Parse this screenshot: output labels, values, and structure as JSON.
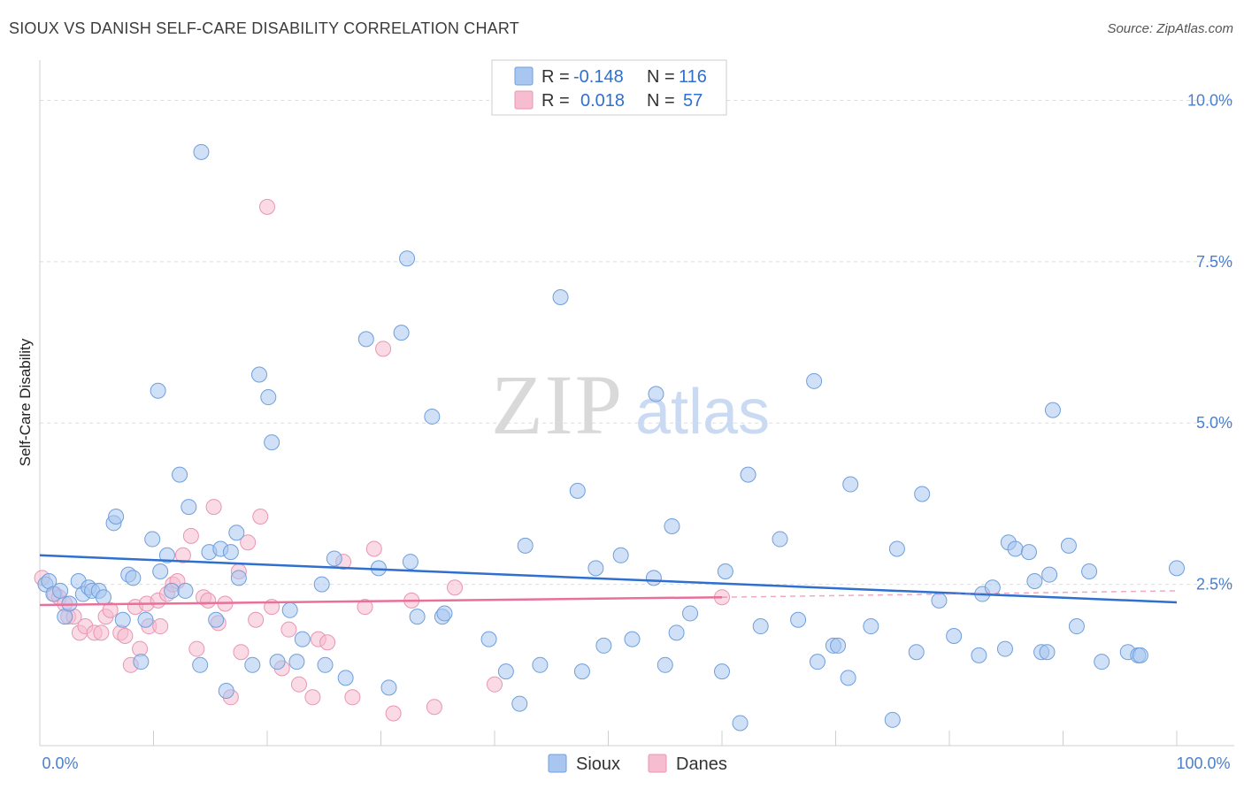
{
  "header": {
    "title": "SIOUX VS DANISH SELF-CARE DISABILITY CORRELATION CHART",
    "source": "Source: ZipAtlas.com"
  },
  "legend_box": {
    "rows": [
      {
        "r_label": "R =",
        "r_value": "-0.148",
        "n_label": "N =",
        "n_value": "116"
      },
      {
        "r_label": "R =",
        "r_value": "0.018",
        "n_label": "N =",
        "n_value": "57"
      }
    ]
  },
  "bottom_legend": [
    "Sioux",
    "Danes"
  ],
  "watermark": {
    "zip": "ZIP",
    "atlas": "atlas"
  },
  "colors": {
    "sioux_fill": "#a8c6f0",
    "sioux_stroke": "#6f9fdc",
    "sioux_line": "#2f6fcf",
    "danes_fill": "#f6bcd0",
    "danes_stroke": "#e896b4",
    "danes_line": "#e8709a",
    "grid": "#dddddd",
    "tick_text": "#4a7fcf"
  },
  "chart_data": {
    "type": "scatter",
    "title": "SIOUX VS DANISH SELF-CARE DISABILITY CORRELATION CHART",
    "xlabel": "",
    "ylabel": "Self-Care Disability",
    "xlim": [
      0,
      100
    ],
    "ylim": [
      0,
      10.5
    ],
    "x_tick_labels": [
      "0.0%",
      "100.0%"
    ],
    "y_ticks": [
      2.5,
      5.0,
      7.5,
      10.0
    ],
    "y_tick_labels": [
      "2.5%",
      "5.0%",
      "7.5%",
      "10.0%"
    ],
    "grid": "horizontal dashed",
    "series": [
      {
        "name": "Sioux",
        "r": -0.148,
        "n": 116,
        "trend": {
          "x0": 0,
          "y0": 2.95,
          "x1": 100,
          "y1": 2.22
        },
        "points": [
          [
            0.5,
            2.5
          ],
          [
            0.8,
            2.55
          ],
          [
            1.2,
            2.35
          ],
          [
            1.8,
            2.4
          ],
          [
            2.2,
            2.0
          ],
          [
            2.6,
            2.2
          ],
          [
            3.4,
            2.55
          ],
          [
            3.8,
            2.35
          ],
          [
            4.3,
            2.45
          ],
          [
            4.6,
            2.4
          ],
          [
            5.2,
            2.4
          ],
          [
            5.6,
            2.3
          ],
          [
            6.5,
            3.45
          ],
          [
            6.7,
            3.55
          ],
          [
            7.3,
            1.95
          ],
          [
            7.8,
            2.65
          ],
          [
            8.2,
            2.6
          ],
          [
            8.9,
            1.3
          ],
          [
            9.3,
            1.95
          ],
          [
            9.9,
            3.2
          ],
          [
            10.4,
            5.5
          ],
          [
            10.6,
            2.7
          ],
          [
            11.2,
            2.95
          ],
          [
            11.6,
            2.4
          ],
          [
            12.3,
            4.2
          ],
          [
            12.8,
            2.4
          ],
          [
            13.1,
            3.7
          ],
          [
            14.1,
            1.25
          ],
          [
            14.2,
            9.2
          ],
          [
            14.9,
            3.0
          ],
          [
            15.5,
            1.95
          ],
          [
            15.9,
            3.05
          ],
          [
            16.4,
            0.85
          ],
          [
            16.8,
            3.0
          ],
          [
            17.3,
            3.3
          ],
          [
            17.5,
            2.6
          ],
          [
            18.7,
            1.25
          ],
          [
            19.3,
            5.75
          ],
          [
            20.1,
            5.4
          ],
          [
            20.4,
            4.7
          ],
          [
            20.9,
            1.3
          ],
          [
            22.0,
            2.1
          ],
          [
            22.6,
            1.3
          ],
          [
            23.1,
            1.65
          ],
          [
            24.8,
            2.5
          ],
          [
            25.1,
            1.25
          ],
          [
            25.9,
            2.9
          ],
          [
            26.9,
            1.05
          ],
          [
            28.7,
            6.3
          ],
          [
            29.8,
            2.75
          ],
          [
            30.7,
            0.9
          ],
          [
            31.8,
            6.4
          ],
          [
            32.3,
            7.55
          ],
          [
            32.6,
            2.85
          ],
          [
            33.2,
            2.0
          ],
          [
            34.5,
            5.1
          ],
          [
            35.4,
            2.0
          ],
          [
            35.6,
            2.05
          ],
          [
            39.5,
            1.65
          ],
          [
            41.0,
            1.15
          ],
          [
            42.2,
            0.65
          ],
          [
            42.7,
            3.1
          ],
          [
            44.0,
            1.25
          ],
          [
            45.8,
            6.95
          ],
          [
            47.3,
            3.95
          ],
          [
            47.7,
            1.15
          ],
          [
            48.9,
            2.75
          ],
          [
            49.6,
            1.55
          ],
          [
            51.1,
            2.95
          ],
          [
            52.1,
            1.65
          ],
          [
            54.0,
            2.6
          ],
          [
            54.2,
            5.45
          ],
          [
            55.0,
            1.25
          ],
          [
            55.6,
            3.4
          ],
          [
            56.0,
            1.75
          ],
          [
            57.2,
            2.05
          ],
          [
            60.0,
            1.15
          ],
          [
            60.3,
            2.7
          ],
          [
            61.6,
            0.35
          ],
          [
            62.3,
            4.2
          ],
          [
            63.4,
            1.85
          ],
          [
            65.1,
            3.2
          ],
          [
            66.7,
            1.95
          ],
          [
            68.1,
            5.65
          ],
          [
            68.4,
            1.3
          ],
          [
            69.8,
            1.55
          ],
          [
            70.2,
            1.55
          ],
          [
            71.1,
            1.05
          ],
          [
            71.3,
            4.05
          ],
          [
            73.1,
            1.85
          ],
          [
            75.0,
            0.4
          ],
          [
            75.4,
            3.05
          ],
          [
            77.1,
            1.45
          ],
          [
            77.6,
            3.9
          ],
          [
            79.1,
            2.25
          ],
          [
            80.4,
            1.7
          ],
          [
            82.6,
            1.4
          ],
          [
            82.9,
            2.35
          ],
          [
            83.8,
            2.45
          ],
          [
            84.9,
            1.5
          ],
          [
            85.2,
            3.15
          ],
          [
            85.8,
            3.05
          ],
          [
            87.0,
            3.0
          ],
          [
            87.5,
            2.55
          ],
          [
            88.1,
            1.45
          ],
          [
            88.6,
            1.45
          ],
          [
            88.8,
            2.65
          ],
          [
            89.1,
            5.2
          ],
          [
            90.5,
            3.1
          ],
          [
            91.2,
            1.85
          ],
          [
            92.3,
            2.7
          ],
          [
            93.4,
            1.3
          ],
          [
            95.7,
            1.45
          ],
          [
            96.6,
            1.4
          ],
          [
            96.8,
            1.4
          ],
          [
            100.0,
            2.75
          ]
        ]
      },
      {
        "name": "Danes",
        "r": 0.018,
        "n": 57,
        "trend": {
          "x0": 0,
          "y0": 2.18,
          "x1": 60,
          "y1": 2.3
        },
        "trend_dashed_to": {
          "x": 100,
          "y": 2.4
        },
        "points": [
          [
            0.2,
            2.6
          ],
          [
            1.3,
            2.35
          ],
          [
            1.7,
            2.3
          ],
          [
            2.2,
            2.2
          ],
          [
            2.5,
            2.0
          ],
          [
            3.0,
            2.0
          ],
          [
            3.5,
            1.75
          ],
          [
            4.0,
            1.85
          ],
          [
            4.8,
            1.75
          ],
          [
            5.4,
            1.75
          ],
          [
            5.8,
            2.0
          ],
          [
            6.2,
            2.1
          ],
          [
            7.1,
            1.75
          ],
          [
            7.5,
            1.7
          ],
          [
            8.0,
            1.25
          ],
          [
            8.4,
            2.15
          ],
          [
            8.8,
            1.5
          ],
          [
            9.4,
            2.2
          ],
          [
            9.6,
            1.85
          ],
          [
            10.4,
            2.25
          ],
          [
            10.6,
            1.85
          ],
          [
            11.2,
            2.35
          ],
          [
            11.7,
            2.5
          ],
          [
            12.1,
            2.55
          ],
          [
            12.6,
            2.95
          ],
          [
            13.3,
            3.25
          ],
          [
            13.8,
            1.5
          ],
          [
            14.4,
            2.3
          ],
          [
            14.8,
            2.25
          ],
          [
            15.3,
            3.7
          ],
          [
            15.7,
            1.9
          ],
          [
            16.3,
            2.2
          ],
          [
            16.8,
            0.75
          ],
          [
            17.5,
            2.7
          ],
          [
            17.7,
            1.45
          ],
          [
            18.3,
            3.15
          ],
          [
            19.0,
            1.95
          ],
          [
            19.4,
            3.55
          ],
          [
            20.0,
            8.35
          ],
          [
            20.4,
            2.15
          ],
          [
            21.3,
            1.2
          ],
          [
            21.9,
            1.8
          ],
          [
            22.8,
            0.95
          ],
          [
            24.0,
            0.75
          ],
          [
            24.5,
            1.65
          ],
          [
            25.3,
            1.6
          ],
          [
            26.7,
            2.85
          ],
          [
            27.5,
            0.75
          ],
          [
            28.6,
            2.15
          ],
          [
            29.4,
            3.05
          ],
          [
            30.2,
            6.15
          ],
          [
            31.1,
            0.5
          ],
          [
            32.7,
            2.25
          ],
          [
            34.7,
            0.6
          ],
          [
            36.5,
            2.45
          ],
          [
            40.0,
            0.95
          ],
          [
            60.0,
            2.3
          ]
        ]
      }
    ]
  }
}
